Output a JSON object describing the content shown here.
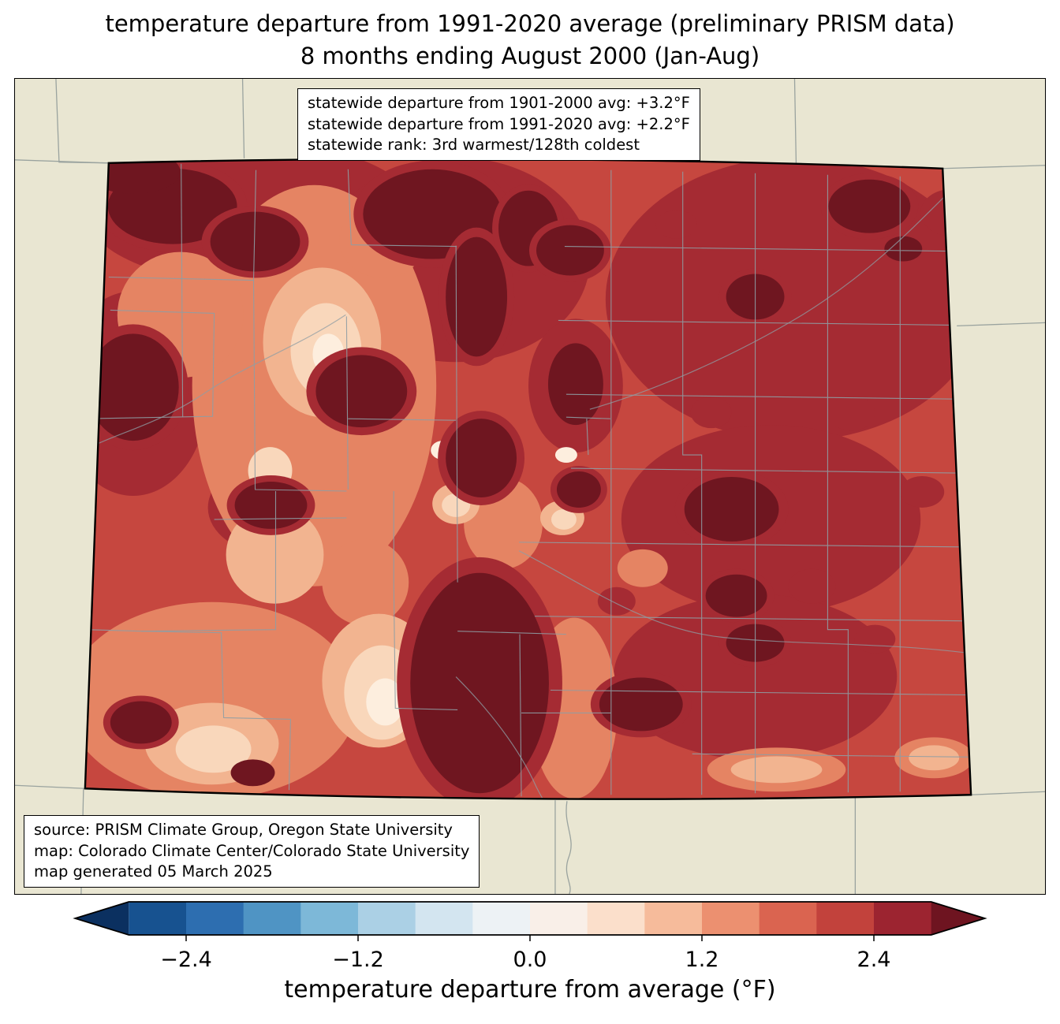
{
  "title": {
    "line1": "temperature departure from 1991-2020 average (preliminary PRISM data)",
    "line2": "8 months ending August 2000 (Jan-Aug)"
  },
  "stats_box": {
    "line1": "statewide departure from 1901-2000 avg: +3.2°F",
    "line2": "statewide departure from 1991-2020 avg: +2.2°F",
    "line3": "statewide rank: 3rd warmest/128th coldest"
  },
  "source_box": {
    "line1": "source: PRISM Climate Group, Oregon State University",
    "line2": "map: Colorado Climate Center/Colorado State University",
    "line3": "map generated 05 March 2025"
  },
  "colorbar": {
    "label": "temperature departure from average (°F)",
    "range": [
      -2.8,
      2.8
    ],
    "ticks": [
      {
        "value": -2.4,
        "label": "−2.4"
      },
      {
        "value": -1.2,
        "label": "−1.2"
      },
      {
        "value": 0.0,
        "label": "0.0"
      },
      {
        "value": 1.2,
        "label": "1.2"
      },
      {
        "value": 2.4,
        "label": "2.4"
      }
    ],
    "segment_colors": [
      "#175290",
      "#2d6eb0",
      "#4f94c4",
      "#7db8d8",
      "#abd0e5",
      "#d3e5f0",
      "#edf2f5",
      "#f9efe8",
      "#fbdfcb",
      "#f6bb9b",
      "#ec9070",
      "#da6450",
      "#c2423c",
      "#9c2430"
    ],
    "left_arrow_color": "#0b3060",
    "right_arrow_color": "#6e1420"
  },
  "map": {
    "region": "Colorado",
    "background": "#e9e6d2",
    "state_border_color": "#000000",
    "county_line_color": "#8f9ea4",
    "neighbor_line_color": "#9aa39f",
    "palette": {
      "base": "#c6473f",
      "dark": "#a52b33",
      "maroon": "#6f1620",
      "salmon": "#e58463",
      "light": "#f2b490",
      "pale": "#f9d7bb",
      "cream": "#fdeede"
    }
  }
}
